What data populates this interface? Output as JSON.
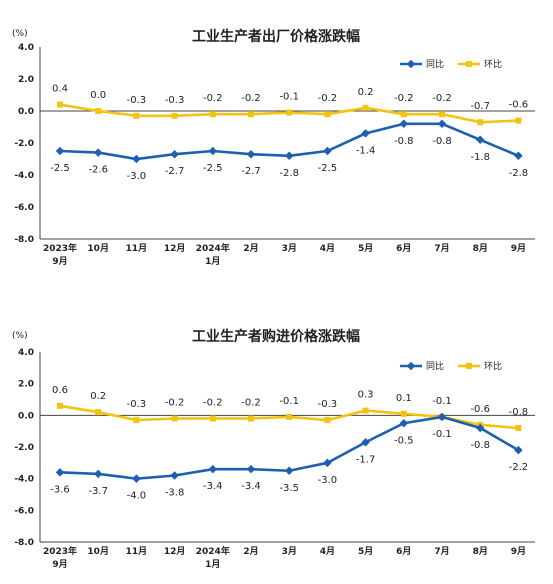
{
  "chart_data": [
    {
      "type": "line",
      "title": "工业生产者出厂价格涨跌幅",
      "unit": "(%)",
      "categories": [
        [
          "2023年",
          "9月"
        ],
        [
          "10月"
        ],
        [
          "11月"
        ],
        [
          "12月"
        ],
        [
          "2024年",
          "1月"
        ],
        [
          "2月"
        ],
        [
          "3月"
        ],
        [
          "4月"
        ],
        [
          "5月"
        ],
        [
          "6月"
        ],
        [
          "7月"
        ],
        [
          "8月"
        ],
        [
          "9月"
        ]
      ],
      "yticks": [
        "4.0",
        "2.0",
        "0.0",
        "-2.0",
        "-4.0",
        "-6.0",
        "-8.0"
      ],
      "ylim": [
        -8,
        4
      ],
      "legend_position": "top-right",
      "series": [
        {
          "name": "同比",
          "color": "#1f5fb0",
          "values": [
            -2.5,
            -2.6,
            -3.0,
            -2.7,
            -2.5,
            -2.7,
            -2.8,
            -2.5,
            -1.4,
            -0.8,
            -0.8,
            -1.8,
            -2.8
          ],
          "labels": [
            "-2.5",
            "-2.6",
            "-3.0",
            "-2.7",
            "-2.5",
            "-2.7",
            "-2.8",
            "-2.5",
            "-1.4",
            "-0.8",
            "-0.8",
            "-1.8",
            "-2.8"
          ]
        },
        {
          "name": "环比",
          "color": "#f2c311",
          "values": [
            0.4,
            0.0,
            -0.3,
            -0.3,
            -0.2,
            -0.2,
            -0.1,
            -0.2,
            0.2,
            -0.2,
            -0.2,
            -0.7,
            -0.6
          ],
          "labels": [
            "0.4",
            "0.0",
            "-0.3",
            "-0.3",
            "-0.2",
            "-0.2",
            "-0.1",
            "-0.2",
            "0.2",
            "-0.2",
            "-0.2",
            "-0.7",
            "-0.6"
          ]
        }
      ]
    },
    {
      "type": "line",
      "title": "工业生产者购进价格涨跌幅",
      "unit": "(%)",
      "categories": [
        [
          "2023年",
          "9月"
        ],
        [
          "10月"
        ],
        [
          "11月"
        ],
        [
          "12月"
        ],
        [
          "2024年",
          "1月"
        ],
        [
          "2月"
        ],
        [
          "3月"
        ],
        [
          "4月"
        ],
        [
          "5月"
        ],
        [
          "6月"
        ],
        [
          "7月"
        ],
        [
          "8月"
        ],
        [
          "9月"
        ]
      ],
      "yticks": [
        "4.0",
        "2.0",
        "0.0",
        "-2.0",
        "-4.0",
        "-6.0",
        "-8.0"
      ],
      "ylim": [
        -8,
        4
      ],
      "legend_position": "top-right",
      "series": [
        {
          "name": "同比",
          "color": "#1f5fb0",
          "values": [
            -3.6,
            -3.7,
            -4.0,
            -3.8,
            -3.4,
            -3.4,
            -3.5,
            -3.0,
            -1.7,
            -0.5,
            -0.1,
            -0.8,
            -2.2
          ],
          "labels": [
            "-3.6",
            "-3.7",
            "-4.0",
            "-3.8",
            "-3.4",
            "-3.4",
            "-3.5",
            "-3.0",
            "-1.7",
            "-0.5",
            "-0.1",
            "-0.8",
            "-2.2"
          ]
        },
        {
          "name": "环比",
          "color": "#f2c311",
          "values": [
            0.6,
            0.2,
            -0.3,
            -0.2,
            -0.2,
            -0.2,
            -0.1,
            -0.3,
            0.3,
            0.1,
            -0.1,
            -0.6,
            -0.8
          ],
          "labels": [
            "0.6",
            "0.2",
            "-0.3",
            "-0.2",
            "-0.2",
            "-0.2",
            "-0.1",
            "-0.3",
            "0.3",
            "0.1",
            "-0.1",
            "-0.6",
            "-0.8"
          ]
        }
      ]
    }
  ]
}
